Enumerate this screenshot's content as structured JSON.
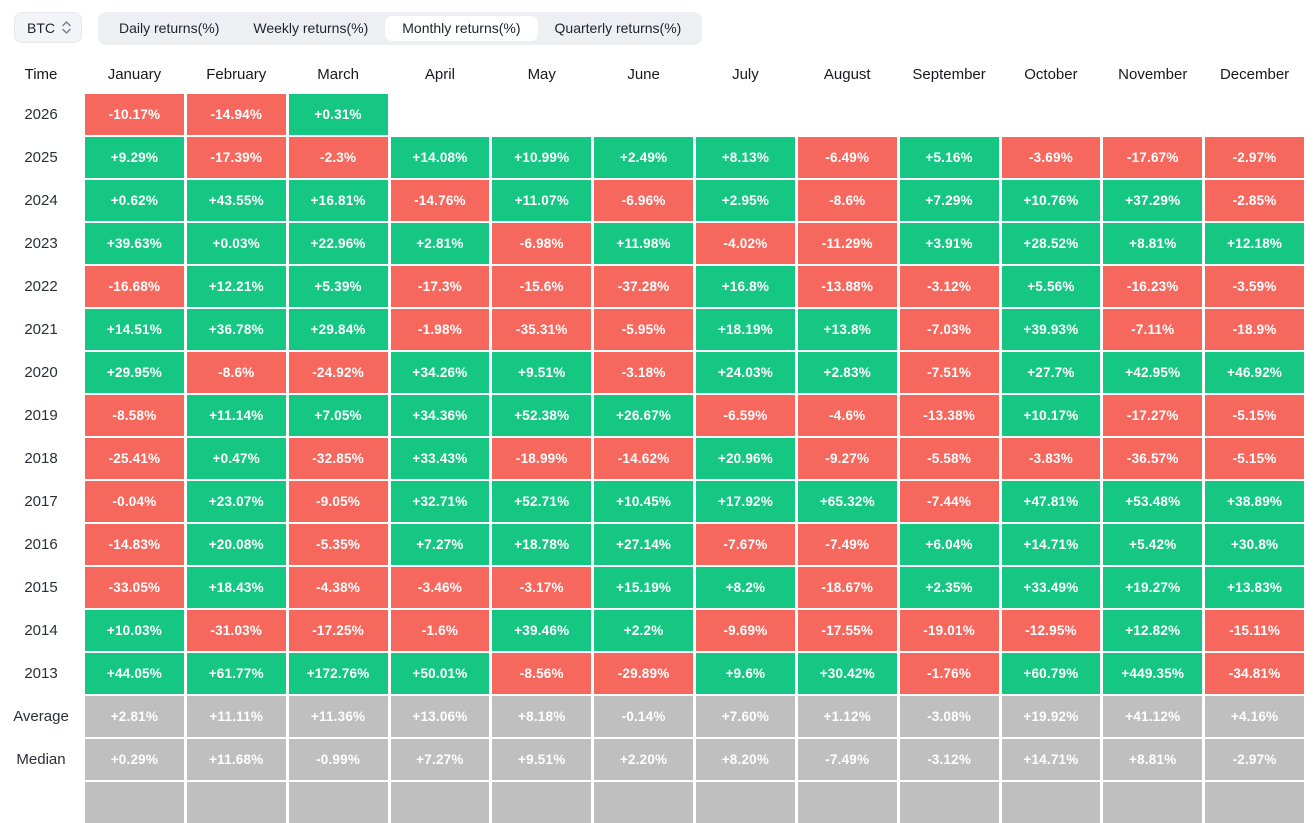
{
  "controls": {
    "symbol_select": {
      "value": "BTC",
      "icon": "updown-chevrons-icon"
    },
    "tabs": [
      {
        "label": "Daily returns(%)",
        "active": false
      },
      {
        "label": "Weekly returns(%)",
        "active": false
      },
      {
        "label": "Monthly returns(%)",
        "active": true
      },
      {
        "label": "Quarterly returns(%)",
        "active": false
      }
    ]
  },
  "colors": {
    "positive": "#16c784",
    "negative": "#f6685e",
    "neutral": "#bfbfbf"
  },
  "table": {
    "columns": [
      "Time",
      "January",
      "February",
      "March",
      "April",
      "May",
      "June",
      "July",
      "August",
      "September",
      "October",
      "November",
      "December"
    ],
    "rows": [
      {
        "label": "2026",
        "summary": false,
        "cells": [
          "-10.17%",
          "-14.94%",
          "+0.31%",
          "",
          "",
          "",
          "",
          "",
          "",
          "",
          "",
          ""
        ]
      },
      {
        "label": "2025",
        "summary": false,
        "cells": [
          "+9.29%",
          "-17.39%",
          "-2.3%",
          "+14.08%",
          "+10.99%",
          "+2.49%",
          "+8.13%",
          "-6.49%",
          "+5.16%",
          "-3.69%",
          "-17.67%",
          "-2.97%"
        ]
      },
      {
        "label": "2024",
        "summary": false,
        "cells": [
          "+0.62%",
          "+43.55%",
          "+16.81%",
          "-14.76%",
          "+11.07%",
          "-6.96%",
          "+2.95%",
          "-8.6%",
          "+7.29%",
          "+10.76%",
          "+37.29%",
          "-2.85%"
        ]
      },
      {
        "label": "2023",
        "summary": false,
        "cells": [
          "+39.63%",
          "+0.03%",
          "+22.96%",
          "+2.81%",
          "-6.98%",
          "+11.98%",
          "-4.02%",
          "-11.29%",
          "+3.91%",
          "+28.52%",
          "+8.81%",
          "+12.18%"
        ]
      },
      {
        "label": "2022",
        "summary": false,
        "cells": [
          "-16.68%",
          "+12.21%",
          "+5.39%",
          "-17.3%",
          "-15.6%",
          "-37.28%",
          "+16.8%",
          "-13.88%",
          "-3.12%",
          "+5.56%",
          "-16.23%",
          "-3.59%"
        ]
      },
      {
        "label": "2021",
        "summary": false,
        "cells": [
          "+14.51%",
          "+36.78%",
          "+29.84%",
          "-1.98%",
          "-35.31%",
          "-5.95%",
          "+18.19%",
          "+13.8%",
          "-7.03%",
          "+39.93%",
          "-7.11%",
          "-18.9%"
        ]
      },
      {
        "label": "2020",
        "summary": false,
        "cells": [
          "+29.95%",
          "-8.6%",
          "-24.92%",
          "+34.26%",
          "+9.51%",
          "-3.18%",
          "+24.03%",
          "+2.83%",
          "-7.51%",
          "+27.7%",
          "+42.95%",
          "+46.92%"
        ]
      },
      {
        "label": "2019",
        "summary": false,
        "cells": [
          "-8.58%",
          "+11.14%",
          "+7.05%",
          "+34.36%",
          "+52.38%",
          "+26.67%",
          "-6.59%",
          "-4.6%",
          "-13.38%",
          "+10.17%",
          "-17.27%",
          "-5.15%"
        ]
      },
      {
        "label": "2018",
        "summary": false,
        "cells": [
          "-25.41%",
          "+0.47%",
          "-32.85%",
          "+33.43%",
          "-18.99%",
          "-14.62%",
          "+20.96%",
          "-9.27%",
          "-5.58%",
          "-3.83%",
          "-36.57%",
          "-5.15%"
        ]
      },
      {
        "label": "2017",
        "summary": false,
        "cells": [
          "-0.04%",
          "+23.07%",
          "-9.05%",
          "+32.71%",
          "+52.71%",
          "+10.45%",
          "+17.92%",
          "+65.32%",
          "-7.44%",
          "+47.81%",
          "+53.48%",
          "+38.89%"
        ]
      },
      {
        "label": "2016",
        "summary": false,
        "cells": [
          "-14.83%",
          "+20.08%",
          "-5.35%",
          "+7.27%",
          "+18.78%",
          "+27.14%",
          "-7.67%",
          "-7.49%",
          "+6.04%",
          "+14.71%",
          "+5.42%",
          "+30.8%"
        ]
      },
      {
        "label": "2015",
        "summary": false,
        "cells": [
          "-33.05%",
          "+18.43%",
          "-4.38%",
          "-3.46%",
          "-3.17%",
          "+15.19%",
          "+8.2%",
          "-18.67%",
          "+2.35%",
          "+33.49%",
          "+19.27%",
          "+13.83%"
        ]
      },
      {
        "label": "2014",
        "summary": false,
        "cells": [
          "+10.03%",
          "-31.03%",
          "-17.25%",
          "-1.6%",
          "+39.46%",
          "+2.2%",
          "-9.69%",
          "-17.55%",
          "-19.01%",
          "-12.95%",
          "+12.82%",
          "-15.11%"
        ]
      },
      {
        "label": "2013",
        "summary": false,
        "cells": [
          "+44.05%",
          "+61.77%",
          "+172.76%",
          "+50.01%",
          "-8.56%",
          "-29.89%",
          "+9.6%",
          "+30.42%",
          "-1.76%",
          "+60.79%",
          "+449.35%",
          "-34.81%"
        ]
      },
      {
        "label": "Average",
        "summary": true,
        "cells": [
          "+2.81%",
          "+11.11%",
          "+11.36%",
          "+13.06%",
          "+8.18%",
          "-0.14%",
          "+7.60%",
          "+1.12%",
          "-3.08%",
          "+19.92%",
          "+41.12%",
          "+4.16%"
        ]
      },
      {
        "label": "Median",
        "summary": true,
        "cells": [
          "+0.29%",
          "+11.68%",
          "-0.99%",
          "+7.27%",
          "+9.51%",
          "+2.20%",
          "+8.20%",
          "-7.49%",
          "-3.12%",
          "+14.71%",
          "+8.81%",
          "-2.97%"
        ]
      }
    ],
    "partial_next_row_visible": true
  }
}
